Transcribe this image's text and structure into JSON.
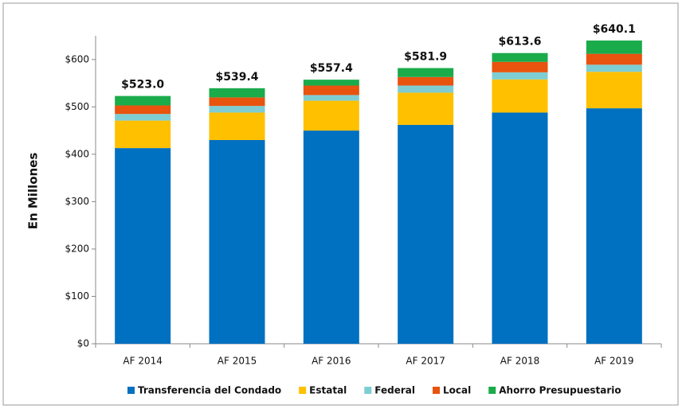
{
  "chart_data": {
    "type": "stacked_bar",
    "y_label": "En Millones",
    "categories": [
      "AF 2014",
      "AF 2015",
      "AF 2016",
      "AF 2017",
      "AF 2018",
      "AF 2019"
    ],
    "series": [
      {
        "name": "Transferencia del Condado",
        "color": "#0070c0",
        "values": [
          413,
          430,
          450,
          462,
          488,
          497
        ]
      },
      {
        "name": "Estatal",
        "color": "#ffc000",
        "values": [
          58,
          58,
          63,
          68,
          70,
          77
        ]
      },
      {
        "name": "Federal",
        "color": "#7ecdd3",
        "values": [
          14,
          14,
          12,
          15,
          15,
          15
        ]
      },
      {
        "name": "Local",
        "color": "#e8530e",
        "values": [
          18,
          18,
          20,
          18,
          22,
          23
        ]
      },
      {
        "name": "Ahorro Presupuestario",
        "color": "#1aab4b",
        "values": [
          20,
          19.4,
          12.4,
          18.9,
          18.6,
          28.1
        ]
      }
    ],
    "totals": [
      523.0,
      539.4,
      557.4,
      581.9,
      613.6,
      640.1
    ],
    "total_labels": [
      "$523.0",
      "$539.4",
      "$557.4",
      "$581.9",
      "$613.6",
      "$640.1"
    ],
    "ylim": [
      0,
      650
    ],
    "yticks": [
      {
        "value": 0,
        "label": "$0"
      },
      {
        "value": 100,
        "label": "$100"
      },
      {
        "value": 200,
        "label": "$200"
      },
      {
        "value": 300,
        "label": "$300"
      },
      {
        "value": 400,
        "label": "$400"
      },
      {
        "value": 500,
        "label": "$500"
      },
      {
        "value": 600,
        "label": "$600"
      }
    ]
  }
}
